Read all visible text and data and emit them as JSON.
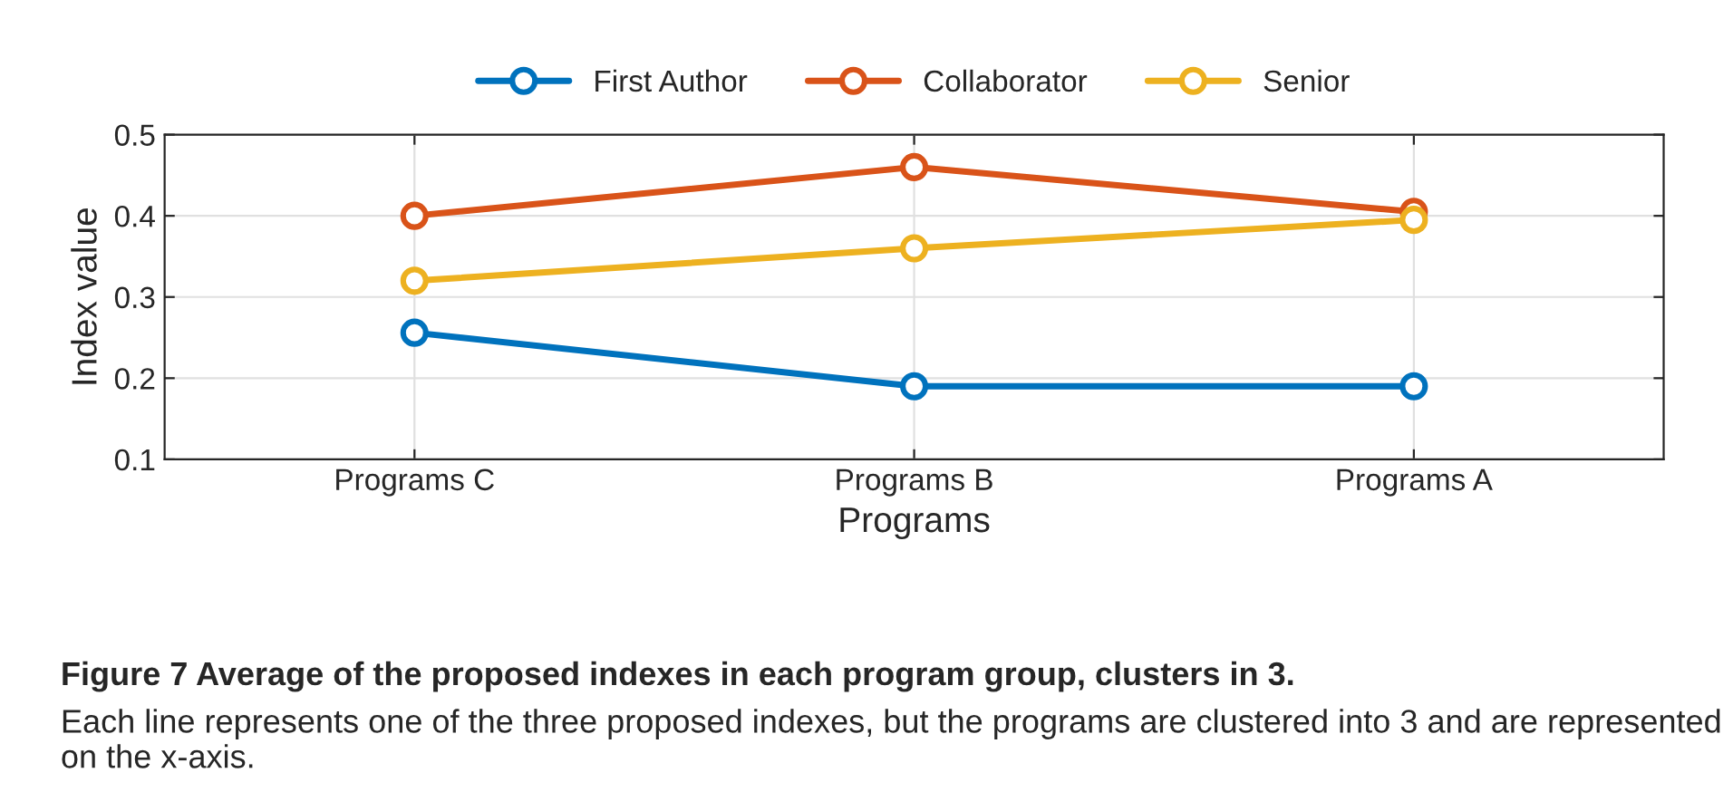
{
  "chart_data": {
    "type": "line",
    "xlabel": "Programs",
    "ylabel": "Index value",
    "categories": [
      "Programs C",
      "Programs B",
      "Programs A"
    ],
    "series": [
      {
        "name": "First Author",
        "color": "#0072bd",
        "values": [
          0.256,
          0.19,
          0.19
        ]
      },
      {
        "name": "Collaborator",
        "color": "#d95319",
        "values": [
          0.4,
          0.46,
          0.405
        ]
      },
      {
        "name": "Senior",
        "color": "#edb120",
        "values": [
          0.32,
          0.36,
          0.395
        ]
      }
    ],
    "ylim": [
      0.1,
      0.5
    ],
    "yticks": [
      0.1,
      0.2,
      0.3,
      0.4,
      0.5
    ],
    "grid": true,
    "legend": "top",
    "marker": "circle",
    "line_style": "solid",
    "annotations": [
      "Figure 7 Average of the proposed indexes in each program group, clusters in 3.",
      "Each line represents one of the three proposed indexes, but the programs are clustered into 3 and are represented on the x-axis."
    ]
  }
}
